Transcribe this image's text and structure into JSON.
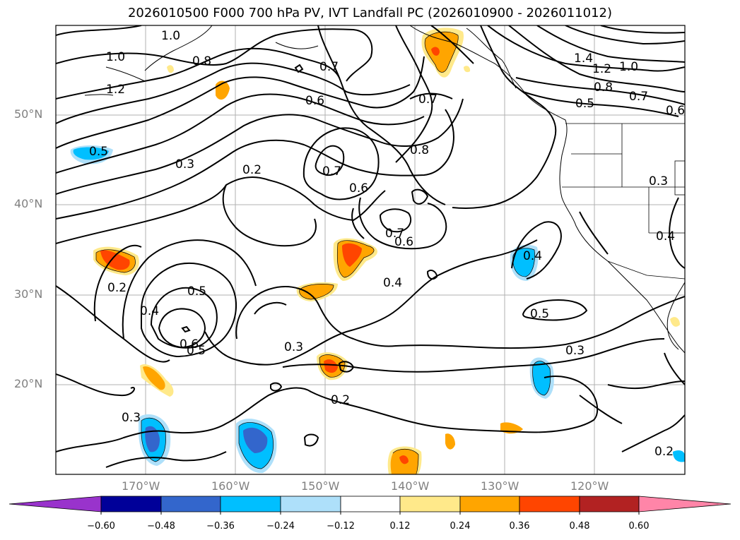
{
  "title": "2026010500 F000 700 hPa PV, IVT Landfall PC (2026010900 - 2026011012)",
  "axes": {
    "lat_labels": [
      "50°N",
      "40°N",
      "30°N",
      "20°N"
    ],
    "lon_labels": [
      "170°W",
      "160°W",
      "150°W",
      "140°W",
      "130°W",
      "120°W"
    ]
  },
  "contour_labels": [
    "1.0",
    "1.0",
    "1.2",
    "0.8",
    "0.7",
    "0.6",
    "0.7",
    "0.8",
    "1.4",
    "1.2",
    "1.0",
    "0.8",
    "0.7",
    "0.5",
    "0.6",
    "0.5",
    "0.3",
    "0.2",
    "0.7",
    "0.6",
    "0.7",
    "0.6",
    "0.3",
    "0.4",
    "0.2",
    "0.5",
    "0.4",
    "0.6",
    "0.5",
    "0.4",
    "0.4",
    "0.5",
    "0.3",
    "0.3",
    "0.2",
    "0.3",
    "0.2"
  ],
  "colorbar": {
    "ticks": [
      "−0.60",
      "−0.48",
      "−0.36",
      "−0.24",
      "−0.12",
      "0.12",
      "0.24",
      "0.36",
      "0.48",
      "0.60"
    ],
    "colors": {
      "under": "#9933cc",
      "n060": "#000099",
      "n048": "#3366cc",
      "n036": "#00bfff",
      "n024": "#aee0fa",
      "zero": "#ffffff",
      "p012": "#ffe98a",
      "p024": "#ffa500",
      "p036": "#ff4500",
      "p048": "#b22222",
      "over": "#ff85a8"
    }
  }
}
